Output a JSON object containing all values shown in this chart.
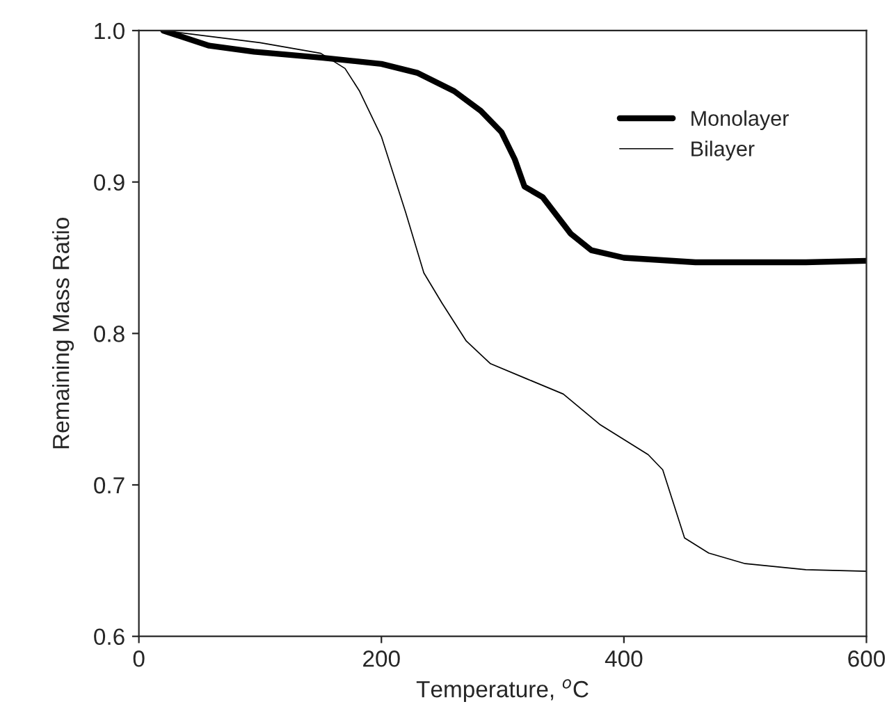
{
  "chart_data": {
    "type": "line",
    "xlabel": "Temperature, $^{o}$C",
    "ylabel": "Remaining Mass Ratio",
    "xlim": [
      0,
      600
    ],
    "ylim": [
      0.6,
      1.0
    ],
    "xticks": [
      0,
      200,
      400,
      600
    ],
    "yticks": [
      0.6,
      0.7,
      0.8,
      0.9,
      {
        "value": 1.0,
        "label": "1.0"
      }
    ],
    "grid": false,
    "legend": "top right",
    "marker": "none",
    "line_style": "solid",
    "series": [
      {
        "name": "Monolayer",
        "color": "#000000",
        "x": [
          20,
          58,
          95,
          152,
          200,
          230,
          260,
          282,
          299,
          310,
          318,
          333,
          356,
          373,
          400,
          459,
          550,
          600
        ],
        "values": [
          1.0,
          0.99,
          0.986,
          0.982,
          0.978,
          0.972,
          0.96,
          0.947,
          0.933,
          0.915,
          0.897,
          0.89,
          0.866,
          0.855,
          0.85,
          0.847,
          0.847,
          0.848
        ]
      },
      {
        "name": "Bilayer",
        "color": "#000000",
        "x": [
          20,
          100,
          150,
          170,
          182,
          200,
          220,
          235,
          250,
          270,
          290,
          320,
          350,
          380,
          420,
          432,
          440,
          450,
          470,
          500,
          550,
          600
        ],
        "values": [
          1.0,
          0.992,
          0.985,
          0.975,
          0.96,
          0.93,
          0.88,
          0.84,
          0.82,
          0.795,
          0.78,
          0.77,
          0.76,
          0.74,
          0.72,
          0.71,
          0.69,
          0.665,
          0.655,
          0.648,
          0.644,
          0.643
        ]
      }
    ]
  }
}
